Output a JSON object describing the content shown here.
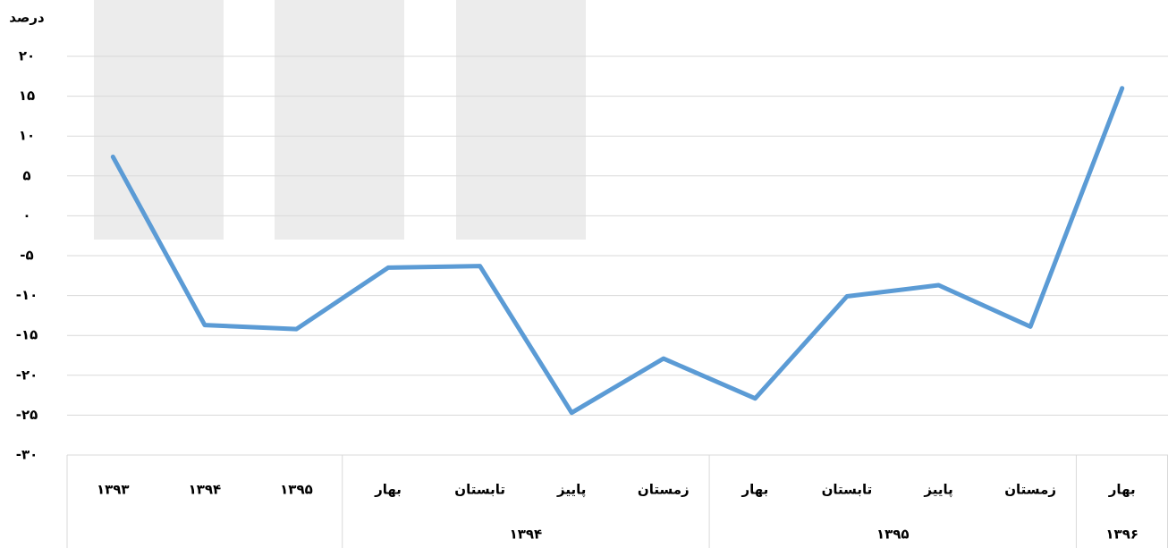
{
  "chart_data": {
    "type": "line",
    "y_axis_label": "درصد",
    "categories": [
      "۱۳۹۳",
      "۱۳۹۴",
      "۱۳۹۵",
      "بهار",
      "تابستان",
      "پاییز",
      "زمستان",
      "بهار",
      "تابستان",
      "پاییز",
      "زمستان",
      "بهار"
    ],
    "group_labels": [
      null,
      null,
      null,
      "۱۳۹۴",
      "۱۳۹۴",
      "۱۳۹۴",
      "۱۳۹۴",
      "۱۳۹۵",
      "۱۳۹۵",
      "۱۳۹۵",
      "۱۳۹۵",
      "۱۳۹۶"
    ],
    "series": [
      {
        "color": "#5b9bd5",
        "values": [
          7.4,
          -13.7,
          -14.2,
          -6.5,
          -6.3,
          -24.7,
          -17.9,
          -22.9,
          -10.1,
          -8.7,
          -13.9,
          16.0
        ]
      }
    ],
    "ylim": [
      -30,
      20
    ],
    "yticks": [
      {
        "value": -30,
        "label": "-۳۰"
      },
      {
        "value": -25,
        "label": "-۲۵"
      },
      {
        "value": -20,
        "label": "-۲۰"
      },
      {
        "value": -15,
        "label": "-۱۵"
      },
      {
        "value": -10,
        "label": "-۱۰"
      },
      {
        "value": -5,
        "label": "-۵"
      },
      {
        "value": 0,
        "label": "۰"
      },
      {
        "value": 5,
        "label": "۵"
      },
      {
        "value": 10,
        "label": "۱۰"
      },
      {
        "value": 15,
        "label": "۱۵"
      },
      {
        "value": 20,
        "label": "۲۰"
      }
    ],
    "grid": true
  }
}
